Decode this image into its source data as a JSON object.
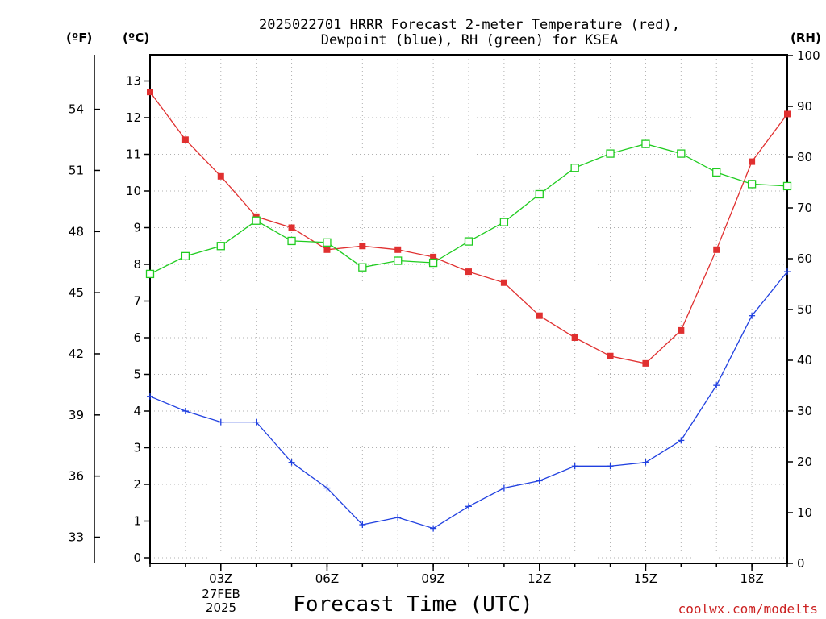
{
  "chart_data": {
    "type": "line",
    "title_line1": "2025022701 HRRR Forecast 2-meter Temperature (red),",
    "title_line2": "Dewpoint (blue), RH (green) for KSEA",
    "xlabel": "Forecast Time (UTC)",
    "credit": "coolwx.com/modelts",
    "units": {
      "fahrenheit": "(ºF)",
      "celsius": "(ºC)",
      "rh": "(RH)"
    },
    "x_hours_utc": [
      1,
      2,
      3,
      4,
      5,
      6,
      7,
      8,
      9,
      10,
      11,
      12,
      13,
      14,
      15,
      16,
      17,
      18,
      19
    ],
    "x_ticks": [
      {
        "hour": 3,
        "label": "03Z"
      },
      {
        "hour": 6,
        "label": "06Z"
      },
      {
        "hour": 9,
        "label": "09Z"
      },
      {
        "hour": 12,
        "label": "12Z"
      },
      {
        "hour": 15,
        "label": "15Z"
      },
      {
        "hour": 18,
        "label": "18Z"
      }
    ],
    "x_date_labels": [
      "27FEB",
      "2025"
    ],
    "xlim": [
      1,
      19
    ],
    "y_celsius": {
      "lim": [
        0,
        14
      ],
      "ticks": [
        "0",
        "1",
        "2",
        "3",
        "4",
        "5",
        "6",
        "7",
        "8",
        "9",
        "10",
        "11",
        "12",
        "13"
      ]
    },
    "y_fahrenheit": {
      "ticks": [
        "33",
        "36",
        "39",
        "42",
        "45",
        "48",
        "51",
        "54"
      ]
    },
    "y_rh": {
      "lim": [
        0,
        100
      ],
      "ticks": [
        "0",
        "10",
        "20",
        "30",
        "40",
        "50",
        "60",
        "70",
        "80",
        "90",
        "100"
      ]
    },
    "series": [
      {
        "name": "Temperature",
        "color": "#e03030",
        "axis": "celsius",
        "marker": "filled-square",
        "values": [
          12.7,
          11.4,
          10.4,
          9.3,
          9.0,
          8.4,
          8.5,
          8.4,
          8.2,
          7.8,
          7.5,
          6.6,
          6.0,
          5.5,
          5.3,
          6.2,
          8.4,
          10.8,
          12.1
        ]
      },
      {
        "name": "Dewpoint",
        "color": "#2040e0",
        "axis": "celsius",
        "marker": "plus",
        "values": [
          4.4,
          4.0,
          3.7,
          3.7,
          2.6,
          1.9,
          0.9,
          1.1,
          0.8,
          1.4,
          1.9,
          2.1,
          2.5,
          2.5,
          2.6,
          3.2,
          4.7,
          6.6,
          7.8
        ]
      },
      {
        "name": "RH",
        "color": "#20cc20",
        "axis": "rh",
        "marker": "open-square",
        "values": [
          57,
          60.5,
          62.5,
          67.5,
          63.5,
          63.2,
          58.3,
          59.6,
          59.2,
          63.4,
          67.2,
          72.7,
          77.9,
          80.7,
          82.6,
          80.7,
          77,
          74.7,
          74.3
        ]
      }
    ]
  }
}
